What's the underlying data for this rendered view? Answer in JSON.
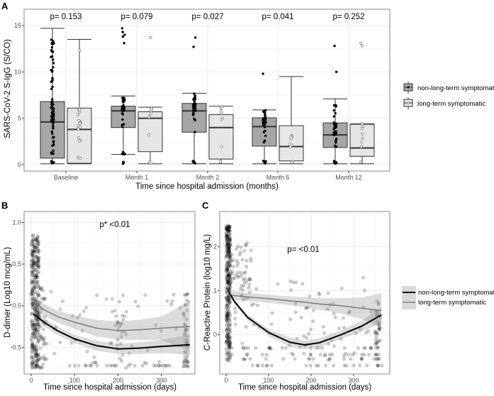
{
  "chart_data": [
    {
      "panel": "A",
      "type": "box",
      "xlabel": "Time since hospital admission (months)",
      "ylabel": "SARS-CoV-2 S-IgG (S/CO)",
      "ylim": [
        -0.7,
        16.2
      ],
      "yticks": [
        "0",
        "5",
        "10",
        "15"
      ],
      "ytick_values": [
        0,
        5,
        10,
        15
      ],
      "grid": true,
      "legend_position": "right",
      "categories": [
        "Baseline",
        "Month 1",
        "Month 2",
        "Month 6",
        "Month 12"
      ],
      "p_values": [
        "p= 0.153",
        "p= 0.079",
        "p= 0.027",
        "p= 0.041",
        "p= 0.252"
      ],
      "series": [
        {
          "name": "non-long-term symptomatic",
          "fill": "#a6a6a6",
          "point": "#000000",
          "boxes": [
            {
              "min": 0.1,
              "q1": 0.7,
              "median": 4.6,
              "q3": 6.8,
              "max": 14.7,
              "outliers": []
            },
            {
              "min": 1.1,
              "q1": 4.0,
              "median": 5.8,
              "q3": 6.3,
              "max": 7.4,
              "outliers": [
                13.1,
                13.8,
                14.0,
                14.3,
                14.7,
                0.1,
                0.2,
                0.3
              ]
            },
            {
              "min": 0.1,
              "q1": 3.5,
              "median": 5.8,
              "q3": 6.6,
              "max": 7.7,
              "outliers": [
                12.7,
                13.7
              ]
            },
            {
              "min": 0.1,
              "q1": 2.0,
              "median": 4.1,
              "q3": 5.05,
              "max": 5.9,
              "outliers": [
                9.8
              ]
            },
            {
              "min": 0.1,
              "q1": 1.85,
              "median": 3.2,
              "q3": 4.5,
              "max": 7.1,
              "outliers": [
                10.0,
                12.8
              ]
            }
          ]
        },
        {
          "name": "long-term symptomatic",
          "fill": "#e6e6e6",
          "point": "#7f7f7f",
          "boxes": [
            {
              "min": 0.1,
              "q1": 0.15,
              "median": 3.8,
              "q3": 6.1,
              "max": 13.5,
              "outliers": []
            },
            {
              "min": 0.1,
              "q1": 1.4,
              "median": 5.0,
              "q3": 5.7,
              "max": 6.2,
              "outliers": [
                13.7
              ]
            },
            {
              "min": 0.1,
              "q1": 0.6,
              "median": 4.0,
              "q3": 5.4,
              "max": 6.3,
              "outliers": []
            },
            {
              "min": 0.1,
              "q1": 0.4,
              "median": 1.95,
              "q3": 4.2,
              "max": 9.5,
              "outliers": []
            },
            {
              "min": 0.1,
              "q1": 0.9,
              "median": 1.8,
              "q3": 4.35,
              "max": 4.4,
              "outliers": [
                12.8,
                13.1
              ]
            }
          ]
        }
      ]
    },
    {
      "panel": "B",
      "type": "scatter",
      "xlabel": "Time since hospital admission (days)",
      "ylabel": "D-dimer (Log10 mcg/mL)",
      "annotation": "p* <0.01",
      "xlim": [
        -20,
        380
      ],
      "ylim": [
        -0.78,
        1.12
      ],
      "xticks": [
        "0",
        "100",
        "200",
        "300"
      ],
      "xtick_values": [
        0,
        100,
        200,
        300
      ],
      "yticks": [
        "-0.5",
        "0.0",
        "0.5",
        "1.0"
      ],
      "ytick_values": [
        -0.5,
        0,
        0.5,
        1.0
      ],
      "grid": true,
      "series": [
        {
          "name": "non-long-term symptomatic",
          "color": "#000000",
          "x": [
            5,
            30,
            60,
            100,
            150,
            200,
            250,
            300,
            365
          ],
          "fit": [
            -0.1,
            -0.2,
            -0.3,
            -0.4,
            -0.48,
            -0.52,
            -0.51,
            -0.49,
            -0.47
          ],
          "ci": [
            0.06,
            0.05,
            0.05,
            0.05,
            0.06,
            0.06,
            0.07,
            0.08,
            0.12
          ]
        },
        {
          "name": "long-term symptomatic",
          "color": "#808080",
          "x": [
            5,
            30,
            60,
            100,
            150,
            200,
            250,
            300,
            365
          ],
          "fit": [
            0.05,
            -0.05,
            -0.13,
            -0.2,
            -0.27,
            -0.3,
            -0.29,
            -0.27,
            -0.25
          ],
          "ci": [
            0.08,
            0.07,
            0.07,
            0.08,
            0.1,
            0.11,
            0.12,
            0.14,
            0.3
          ]
        }
      ]
    },
    {
      "panel": "C",
      "type": "scatter",
      "xlabel": "Time since hospital admission (days)",
      "ylabel": "C-Reactive Protein (log10 mg/L)",
      "annotation": "p=  <0.01",
      "xlim": [
        -20,
        380
      ],
      "ylim": [
        -0.72,
        2.8
      ],
      "xticks": [
        "0",
        "100",
        "200",
        "300"
      ],
      "xtick_values": [
        0,
        100,
        200,
        300
      ],
      "yticks": [
        "0",
        "1",
        "2"
      ],
      "ytick_values": [
        0,
        1,
        2
      ],
      "grid": true,
      "legend_position": "right",
      "series": [
        {
          "name": "non-long-term symptomatic",
          "color": "#000000",
          "x": [
            5,
            20,
            50,
            100,
            150,
            185,
            220,
            270,
            320,
            365
          ],
          "fit": [
            1.0,
            0.75,
            0.4,
            0.05,
            -0.17,
            -0.23,
            -0.18,
            0.0,
            0.2,
            0.45
          ],
          "ci": [
            0.06,
            0.05,
            0.06,
            0.08,
            0.1,
            0.1,
            0.1,
            0.1,
            0.12,
            0.18
          ]
        },
        {
          "name": "long-term symptomatic",
          "color": "#808080",
          "x": [
            5,
            20,
            50,
            100,
            150,
            185,
            220,
            270,
            320,
            365
          ],
          "fit": [
            0.9,
            0.89,
            0.86,
            0.82,
            0.77,
            0.74,
            0.7,
            0.66,
            0.6,
            0.55
          ],
          "ci": [
            0.1,
            0.1,
            0.09,
            0.09,
            0.1,
            0.11,
            0.13,
            0.17,
            0.25,
            0.4
          ]
        }
      ]
    }
  ],
  "panel_labels": [
    "A",
    "B",
    "C"
  ]
}
